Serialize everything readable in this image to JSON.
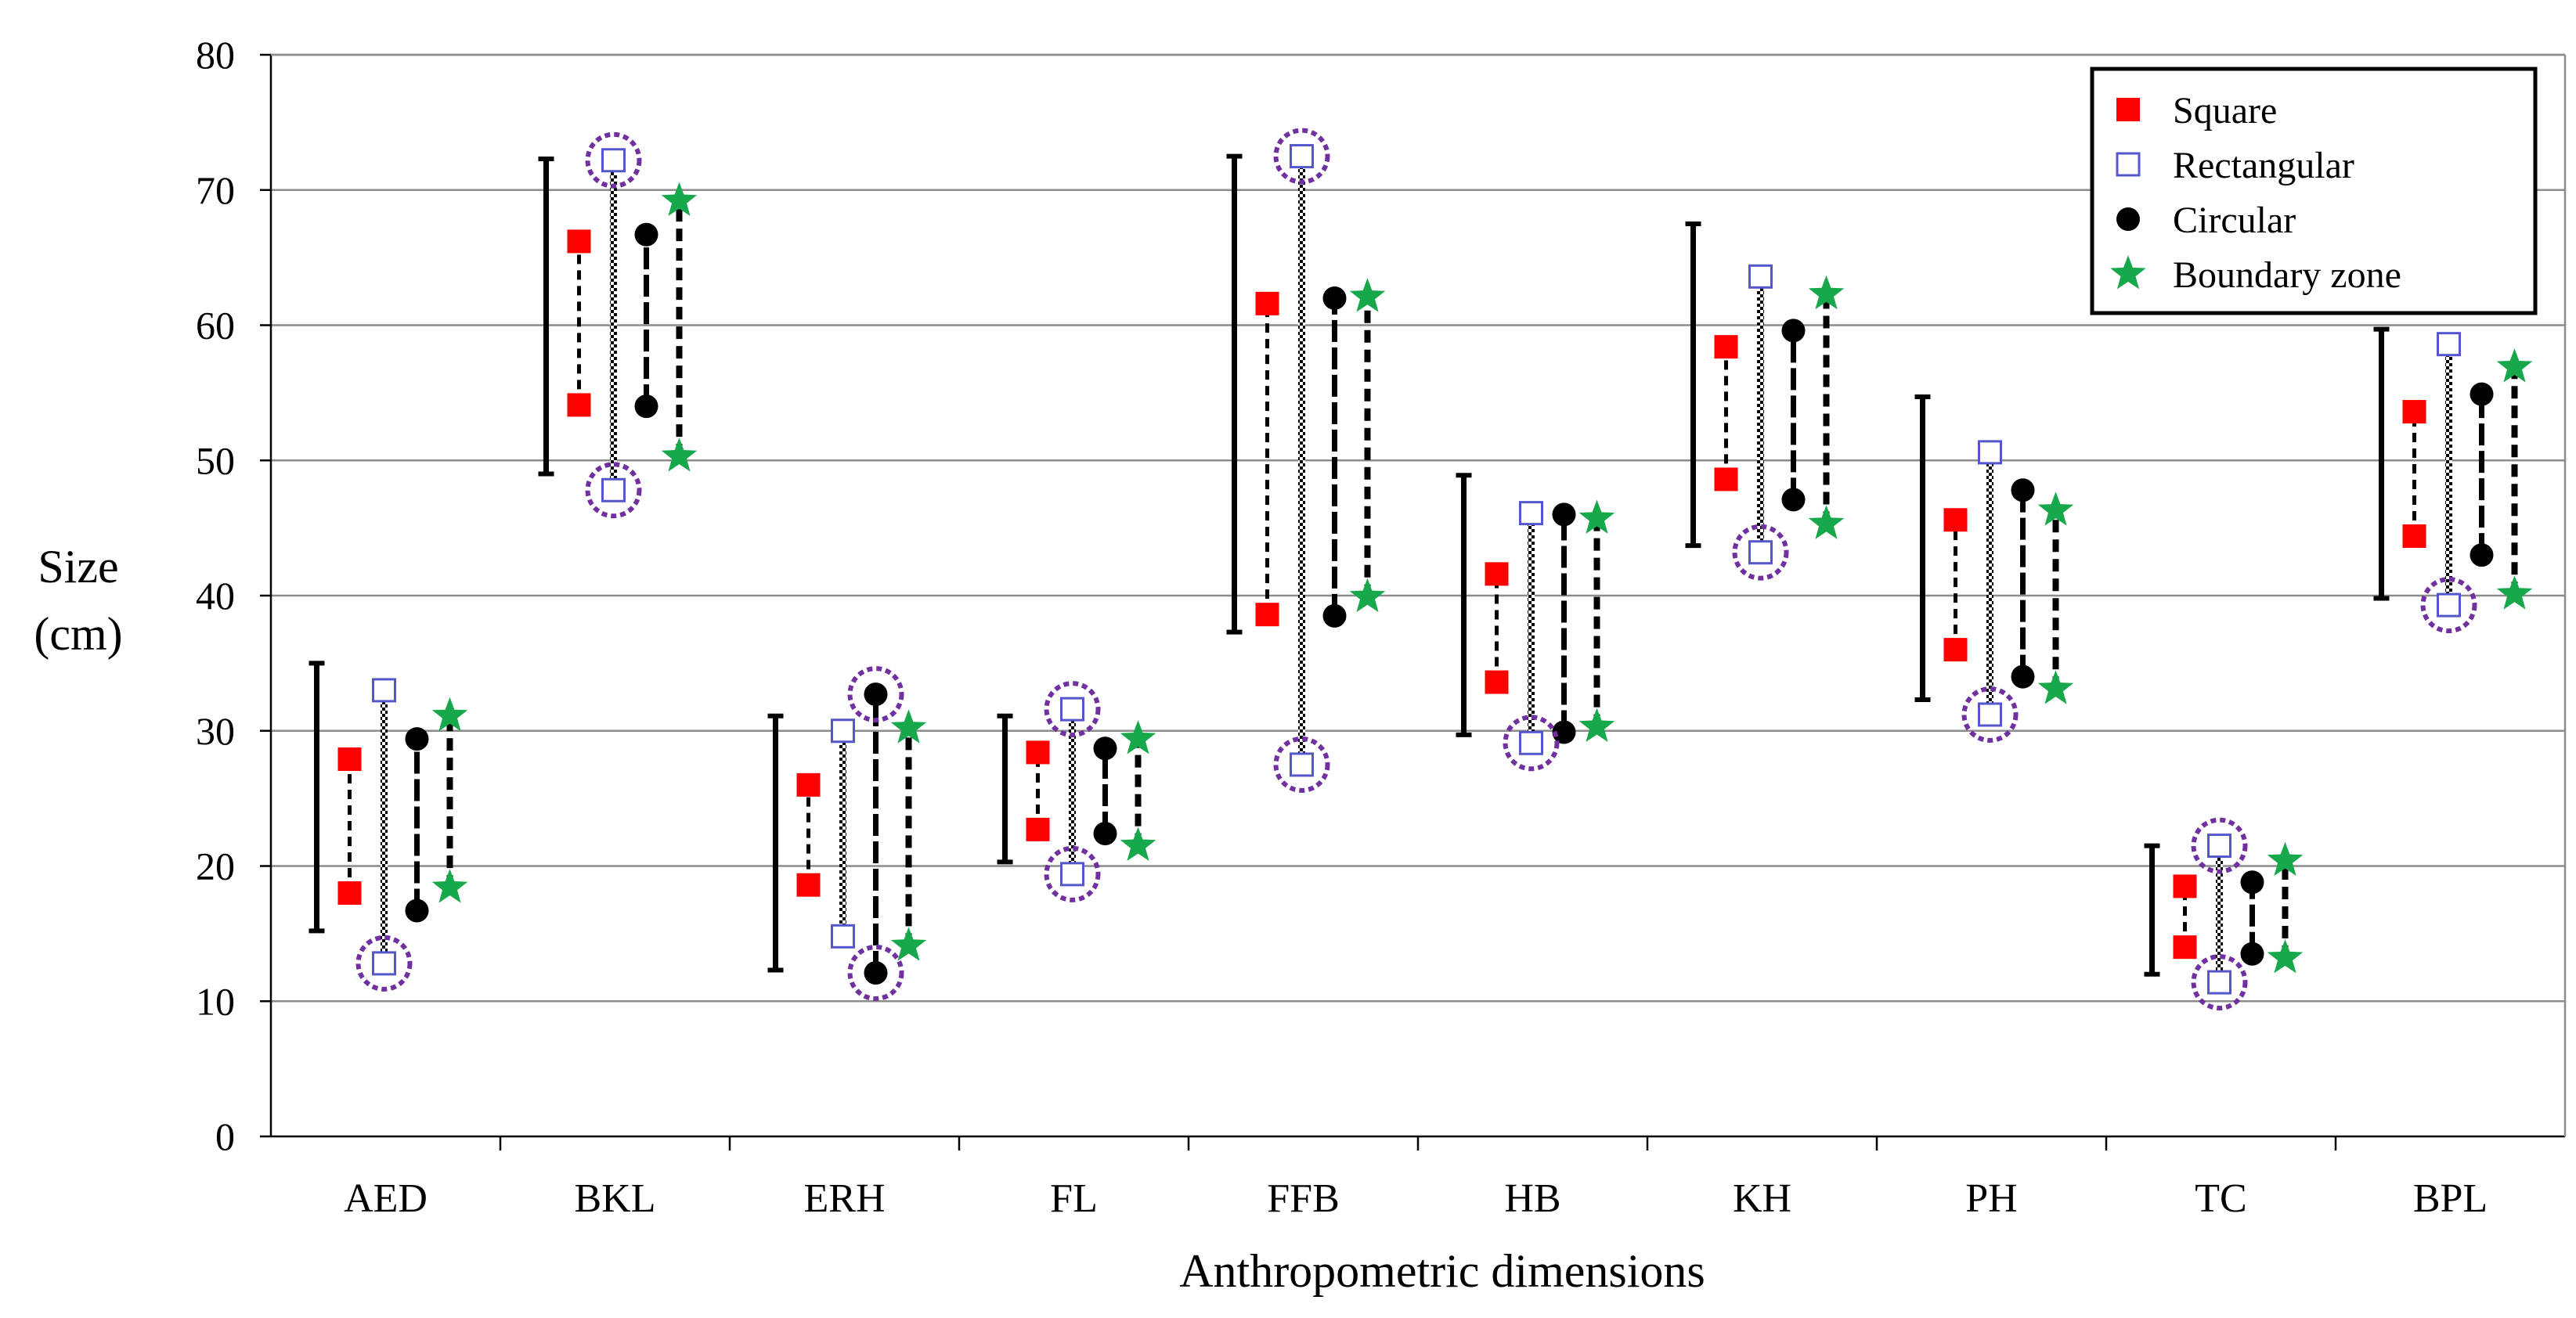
{
  "chart_data": {
    "type": "range-dot",
    "title": "",
    "xlabel": "Anthropometric dimensions",
    "ylabel_line1": "Size",
    "ylabel_line2": "(cm)",
    "ylim": [
      0,
      80
    ],
    "ytick_step": 10,
    "yticks": [
      "0",
      "10",
      "20",
      "30",
      "40",
      "50",
      "60",
      "70",
      "80"
    ],
    "grid": true,
    "legend_position": "top-right",
    "categories": [
      "AED",
      "BKL",
      "ERH",
      "FL",
      "FFB",
      "HB",
      "KH",
      "PH",
      "TC",
      "BPL"
    ],
    "anthropometric_range": [
      [
        15.2,
        35.0
      ],
      [
        49.0,
        72.3
      ],
      [
        12.3,
        31.1
      ],
      [
        20.3,
        31.1
      ],
      [
        37.3,
        72.5
      ],
      [
        29.7,
        48.9
      ],
      [
        43.7,
        67.5
      ],
      [
        32.3,
        54.7
      ],
      [
        12.0,
        21.5
      ],
      [
        39.8,
        59.7
      ]
    ],
    "series": [
      {
        "name": "Square",
        "color": "#ff0000",
        "marker": "filled-square",
        "min": [
          18.0,
          54.1,
          18.6,
          22.7,
          38.6,
          33.6,
          48.6,
          36.0,
          14.0,
          44.4
        ],
        "max": [
          27.9,
          66.2,
          26.0,
          28.4,
          61.6,
          41.6,
          58.4,
          45.6,
          18.5,
          53.6
        ]
      },
      {
        "name": "Rectangular",
        "color": "#5555cc",
        "marker": "open-square",
        "min": [
          12.8,
          47.8,
          14.8,
          19.4,
          27.5,
          29.1,
          43.2,
          31.2,
          11.4,
          39.3
        ],
        "max": [
          33.0,
          72.2,
          30.0,
          31.6,
          72.5,
          46.1,
          63.6,
          50.6,
          21.5,
          58.6
        ]
      },
      {
        "name": "Circular",
        "color": "#000000",
        "marker": "filled-circle",
        "min": [
          16.7,
          54.0,
          12.1,
          22.4,
          38.5,
          29.9,
          47.1,
          34.0,
          13.5,
          43.0
        ],
        "max": [
          29.4,
          66.7,
          32.7,
          28.7,
          62.0,
          46.0,
          59.6,
          47.8,
          18.8,
          54.9
        ]
      },
      {
        "name": "Boundary zone",
        "color": "#18a84c",
        "marker": "star",
        "min": [
          18.4,
          50.3,
          14.1,
          21.5,
          39.9,
          30.3,
          45.3,
          33.1,
          13.2,
          40.1
        ],
        "max": [
          31.1,
          69.2,
          30.2,
          29.4,
          62.1,
          45.7,
          62.3,
          46.3,
          20.4,
          56.9
        ]
      }
    ],
    "highlight_color": "#7030a0",
    "highlighted_points": [
      {
        "category": "AED",
        "series": "Rectangular",
        "end": "min"
      },
      {
        "category": "BKL",
        "series": "Rectangular",
        "end": "max"
      },
      {
        "category": "BKL",
        "series": "Rectangular",
        "end": "min"
      },
      {
        "category": "ERH",
        "series": "Circular",
        "end": "max"
      },
      {
        "category": "ERH",
        "series": "Circular",
        "end": "min"
      },
      {
        "category": "FL",
        "series": "Rectangular",
        "end": "max"
      },
      {
        "category": "FL",
        "series": "Rectangular",
        "end": "min"
      },
      {
        "category": "FFB",
        "series": "Rectangular",
        "end": "max"
      },
      {
        "category": "FFB",
        "series": "Rectangular",
        "end": "min"
      },
      {
        "category": "HB",
        "series": "Rectangular",
        "end": "min"
      },
      {
        "category": "KH",
        "series": "Rectangular",
        "end": "min"
      },
      {
        "category": "PH",
        "series": "Rectangular",
        "end": "min"
      },
      {
        "category": "TC",
        "series": "Rectangular",
        "end": "max"
      },
      {
        "category": "TC",
        "series": "Rectangular",
        "end": "min"
      },
      {
        "category": "BPL",
        "series": "Rectangular",
        "end": "min"
      }
    ]
  }
}
